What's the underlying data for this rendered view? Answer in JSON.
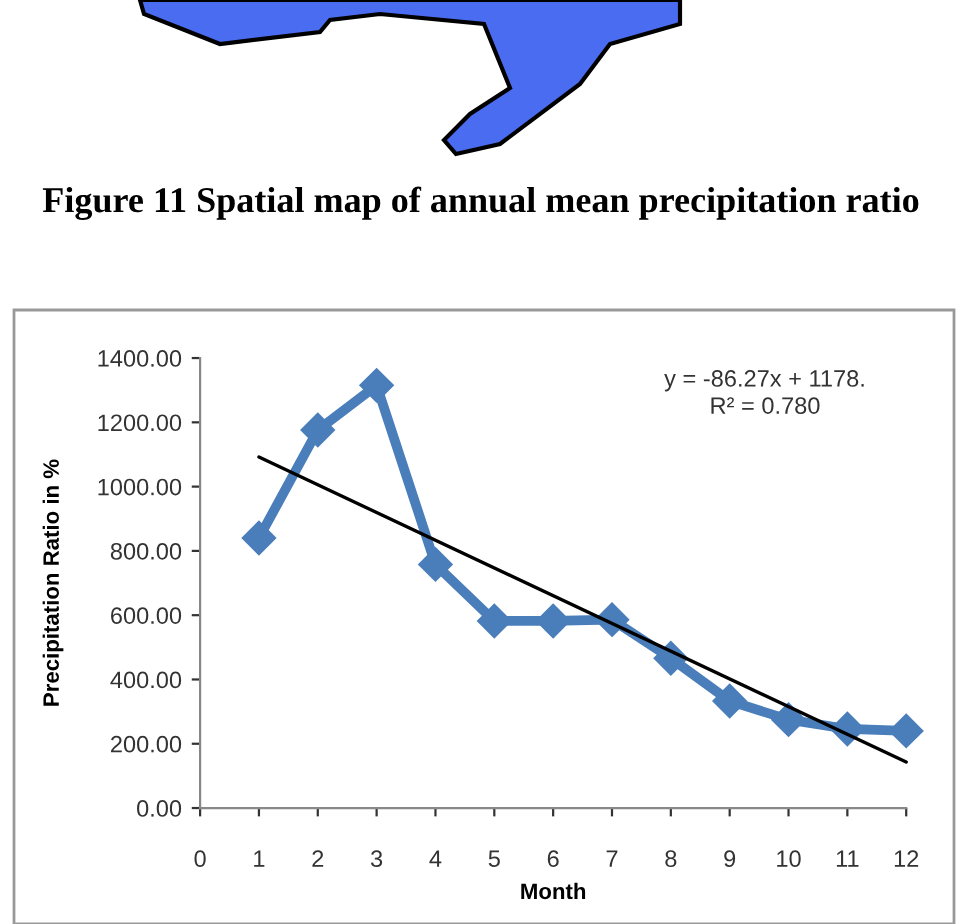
{
  "chart_data": {
    "type": "line",
    "xlabel": "Month",
    "ylabel": "Precipitation Ratio in %",
    "x": [
      1,
      2,
      3,
      4,
      5,
      6,
      7,
      8,
      9,
      10,
      11,
      12
    ],
    "series": [
      {
        "color": "#4a7ebb",
        "values": [
          840,
          1176,
          1315,
          758,
          582,
          582,
          586,
          466,
          333,
          275,
          246,
          240
        ],
        "marker": "diamond",
        "line_style": "solid"
      },
      {
        "type": "line",
        "color": "#000000",
        "x": [
          1,
          12
        ],
        "values": [
          1092,
          143
        ],
        "marker": "none",
        "line_style": "solid"
      }
    ],
    "xlim": [
      0,
      12
    ],
    "xticks": [
      0,
      1,
      2,
      3,
      4,
      5,
      6,
      7,
      8,
      9,
      10,
      11,
      12
    ],
    "ylim": [
      0,
      1400
    ],
    "yticks": [
      {
        "value": 0,
        "label": "0.00"
      },
      {
        "value": 200,
        "label": "200.00"
      },
      {
        "value": 400,
        "label": "400.00"
      },
      {
        "value": 600,
        "label": "600.00"
      },
      {
        "value": 800,
        "label": "800.00"
      },
      {
        "value": 1000,
        "label": "1000.00"
      },
      {
        "value": 1200,
        "label": "1200.00"
      },
      {
        "value": 1400,
        "label": "1400.00"
      }
    ],
    "grid": false,
    "legend": false,
    "annotations": [
      "Figure 11 Spatial map of annual mean precipitation ratio",
      "y = -86.27x + 1178.\nR² = 0.780"
    ]
  }
}
